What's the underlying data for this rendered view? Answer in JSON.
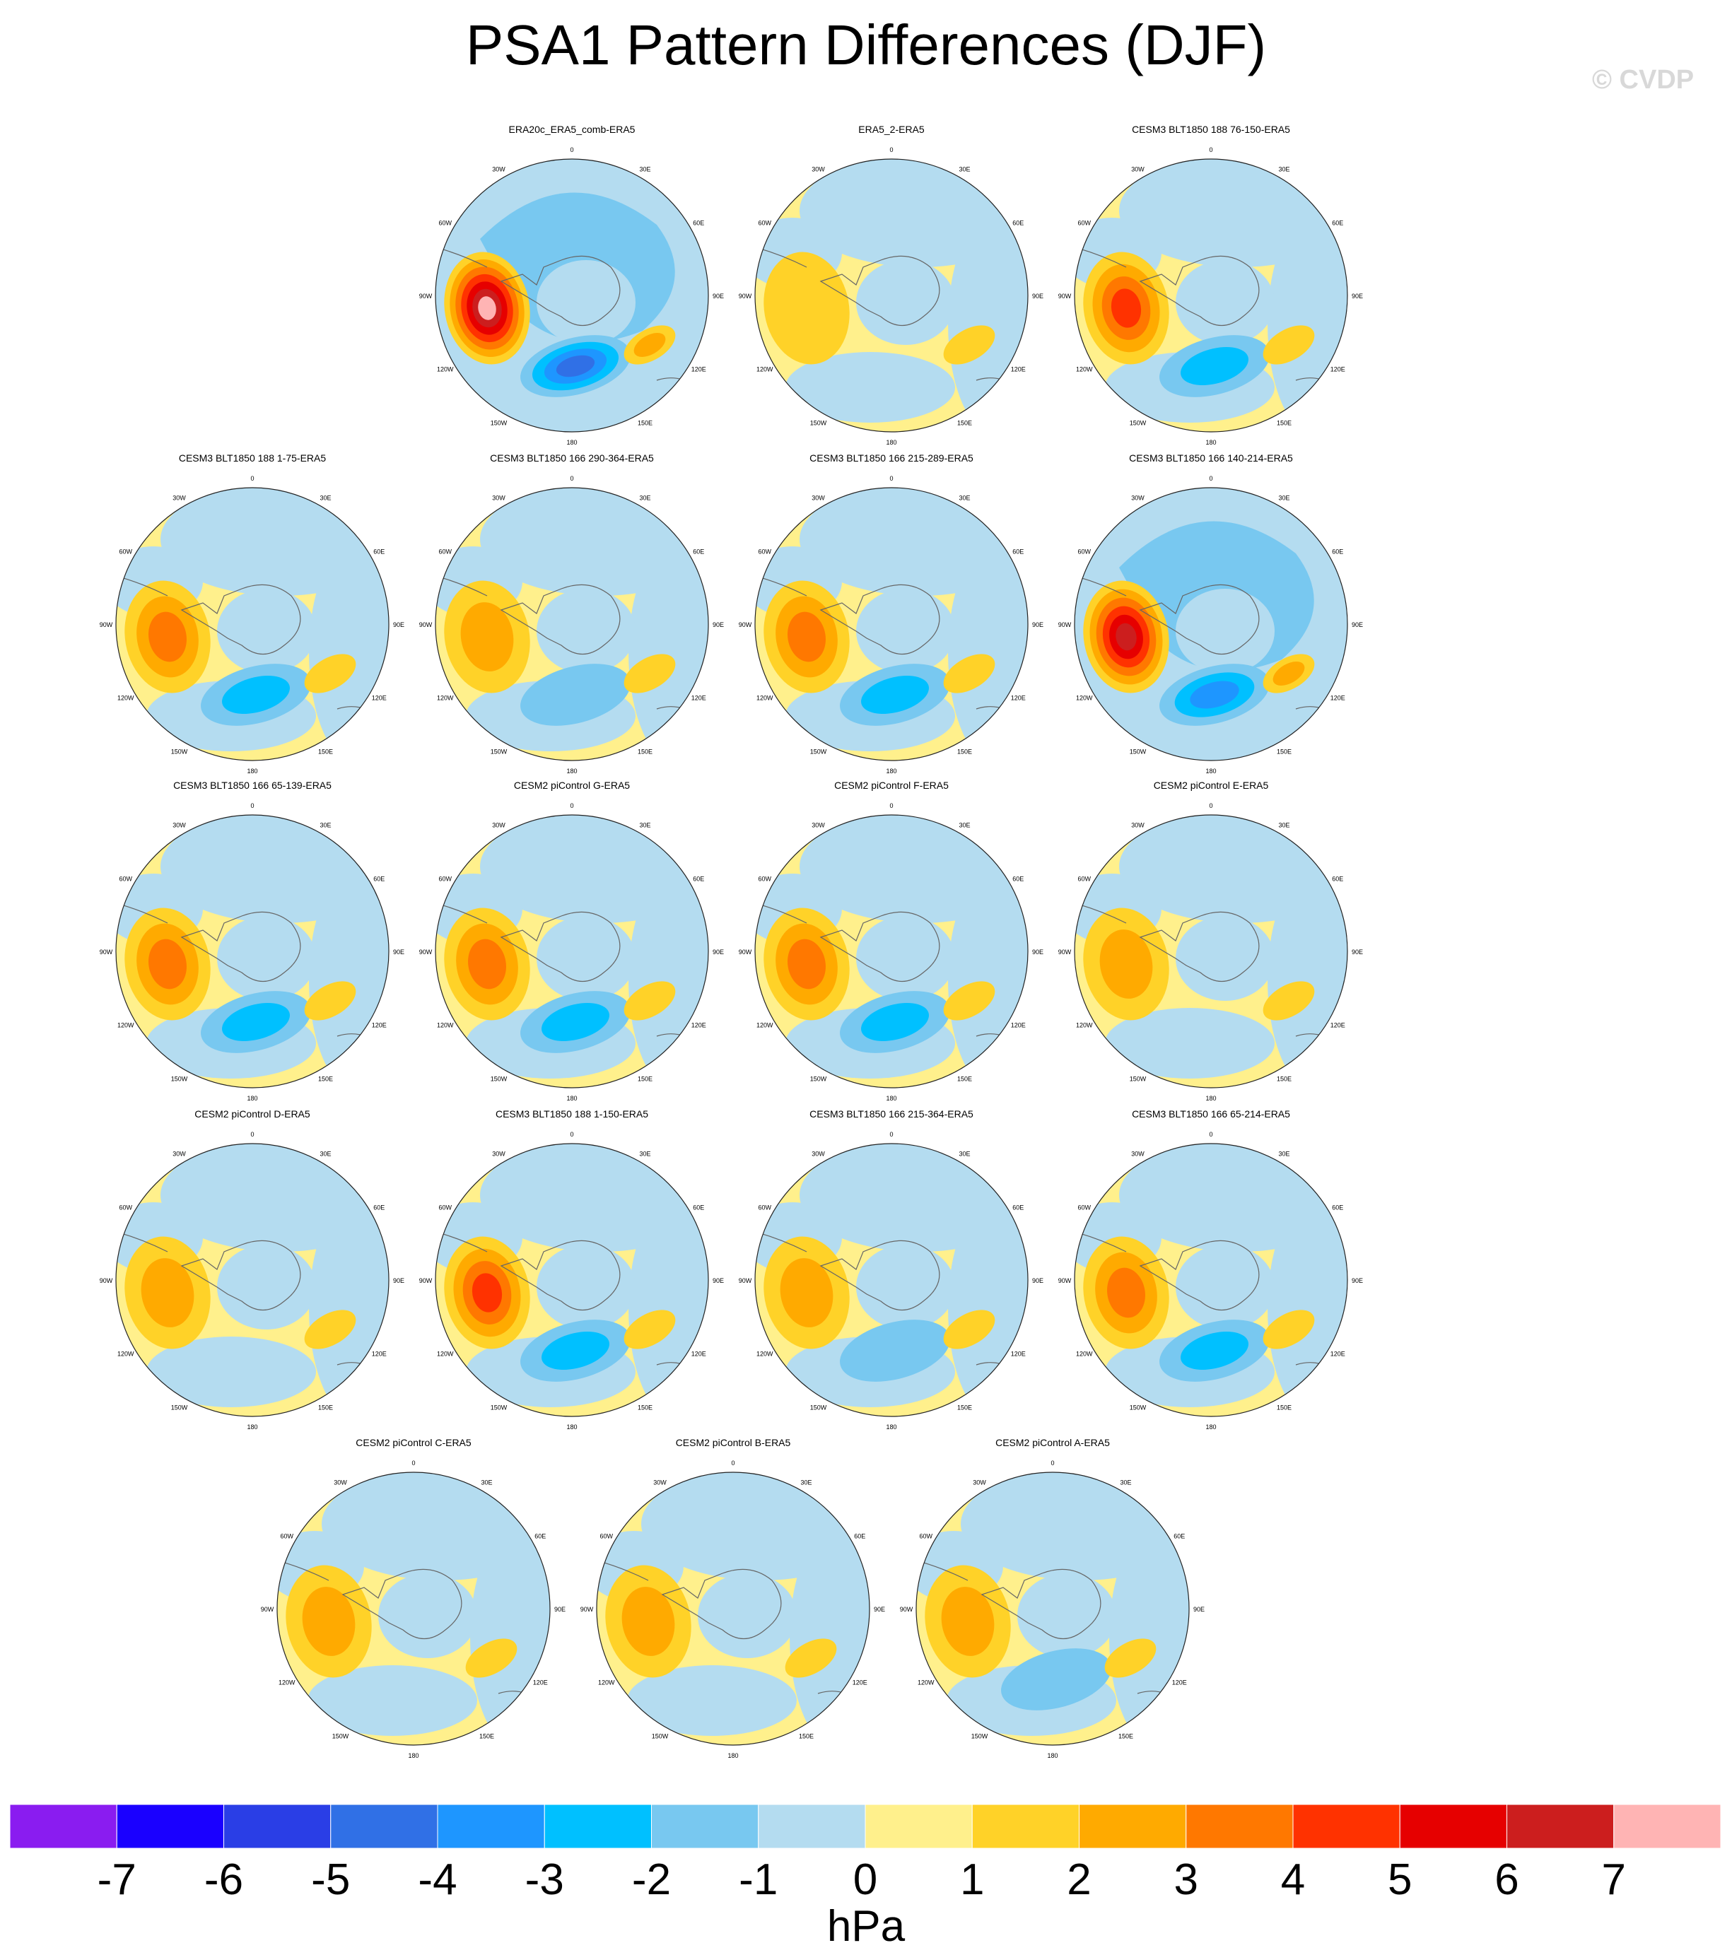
{
  "title": "PSA1 Pattern Differences (DJF)",
  "watermark": "© CVDP",
  "lon_labels": [
    "0",
    "30E",
    "60E",
    "90E",
    "120E",
    "150E",
    "180",
    "150W",
    "120W",
    "90W",
    "60W",
    "30W"
  ],
  "panels": [
    {
      "title": "ERA20c_ERA5_comb-ERA5",
      "strength": 1.0
    },
    {
      "title": "ERA5_2-ERA5",
      "strength": 0.1
    },
    {
      "title": "CESM3 BLT1850 188 76-150-ERA5",
      "strength": 0.6
    },
    {
      "title": "CESM3 BLT1850 188 1-75-ERA5",
      "strength": 0.45
    },
    {
      "title": "CESM3 BLT1850 166 290-364-ERA5",
      "strength": 0.35
    },
    {
      "title": "CESM3 BLT1850 166 215-289-ERA5",
      "strength": 0.45
    },
    {
      "title": "CESM3 BLT1850 166 140-214-ERA5",
      "strength": 0.85
    },
    {
      "title": "CESM3 BLT1850 166 65-139-ERA5",
      "strength": 0.4
    },
    {
      "title": "CESM2 piControl G-ERA5",
      "strength": 0.4
    },
    {
      "title": "CESM2 piControl F-ERA5",
      "strength": 0.4
    },
    {
      "title": "CESM2 piControl E-ERA5",
      "strength": 0.25
    },
    {
      "title": "CESM2 piControl D-ERA5",
      "strength": 0.25
    },
    {
      "title": "CESM3 BLT1850 188 1-150-ERA5",
      "strength": 0.5
    },
    {
      "title": "CESM3 BLT1850 166 215-364-ERA5",
      "strength": 0.35
    },
    {
      "title": "CESM3 BLT1850 166 65-214-ERA5",
      "strength": 0.4
    },
    {
      "title": "CESM2 piControl C-ERA5",
      "strength": 0.25
    },
    {
      "title": "CESM2 piControl B-ERA5",
      "strength": 0.25
    },
    {
      "title": "CESM2 piControl A-ERA5",
      "strength": 0.3
    }
  ],
  "colorbar": {
    "colors": [
      "#8a1cf0",
      "#1a00ff",
      "#2a3ee6",
      "#3070e6",
      "#1e96ff",
      "#00c0ff",
      "#78c8f0",
      "#b4dcf0",
      "#fff08c",
      "#ffd228",
      "#ffaa00",
      "#ff7800",
      "#ff3200",
      "#e60000",
      "#cc1e1e",
      "#ffb4b4"
    ],
    "ticks": [
      "-7",
      "-6",
      "-5",
      "-4",
      "-3",
      "-2",
      "-1",
      "0",
      "1",
      "2",
      "3",
      "4",
      "5",
      "6",
      "7"
    ],
    "units": "hPa"
  }
}
